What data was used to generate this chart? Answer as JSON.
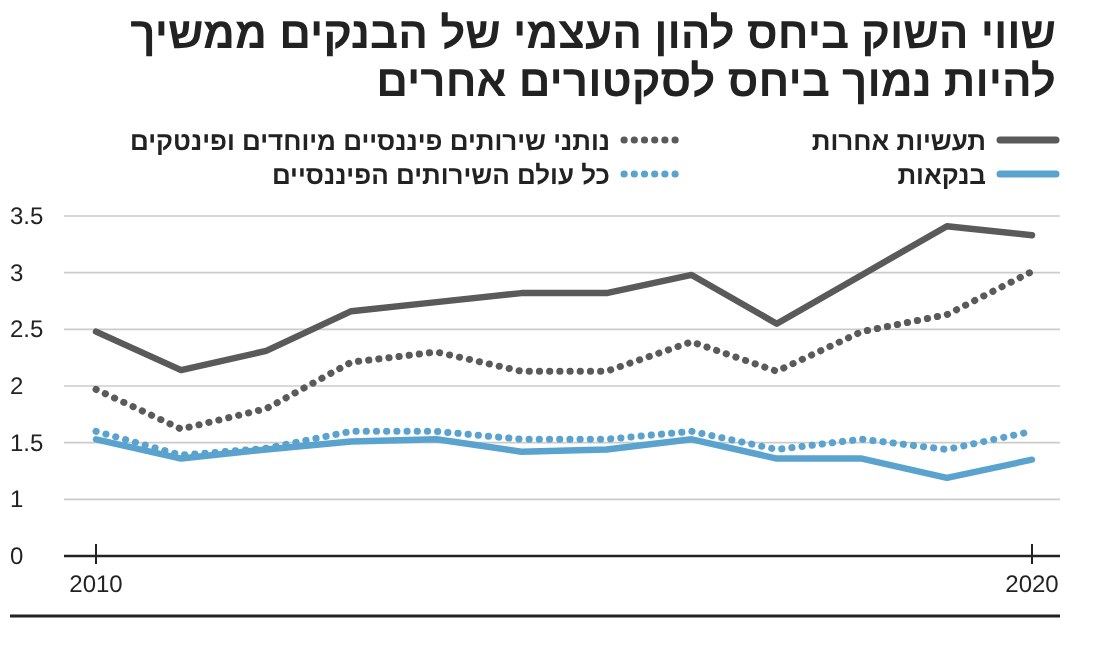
{
  "chart_data": {
    "type": "line",
    "title": "שווי השוק ביחס להון העצמי של הבנקים ממשיך\nלהיות נמוך ביחס לסקטורים אחרים",
    "categories": [
      "2010",
      null,
      null,
      null,
      null,
      null,
      null,
      null,
      null,
      null,
      null,
      "2020"
    ],
    "series": [
      {
        "name": "תעשיות אחרות",
        "color": "#5a5a5a",
        "line_style": "solid",
        "values": [
          2.48,
          2.14,
          2.31,
          2.66,
          2.74,
          2.82,
          2.82,
          2.98,
          2.55,
          2.98,
          3.41,
          3.33
        ]
      },
      {
        "name": "נותני שירותים פיננסיים מיוחדים ופינטקים",
        "color": "#5a5a5a",
        "line_style": "dotted",
        "values": [
          1.97,
          1.62,
          1.8,
          2.21,
          2.3,
          2.13,
          2.13,
          2.39,
          2.13,
          2.48,
          2.63,
          3.01
        ]
      },
      {
        "name": "בנקאות",
        "color": "#5ba3cf",
        "line_style": "solid",
        "values": [
          1.53,
          1.36,
          1.44,
          1.51,
          1.53,
          1.42,
          1.44,
          1.53,
          1.36,
          1.36,
          1.19,
          1.35
        ]
      },
      {
        "name": "כל עולם השירותים הפיננסיים",
        "color": "#5ba3cf",
        "line_style": "dotted",
        "values": [
          1.6,
          1.39,
          1.45,
          1.6,
          1.6,
          1.53,
          1.53,
          1.6,
          1.44,
          1.53,
          1.44,
          1.6
        ]
      }
    ],
    "ylim": [
      0.5,
      3.5
    ],
    "yticks": [
      {
        "value": 0.5,
        "label": "0"
      },
      1,
      1.5,
      2,
      2.5,
      3,
      3.5
    ],
    "grid": "y",
    "legend": "top right",
    "marker": "none"
  }
}
